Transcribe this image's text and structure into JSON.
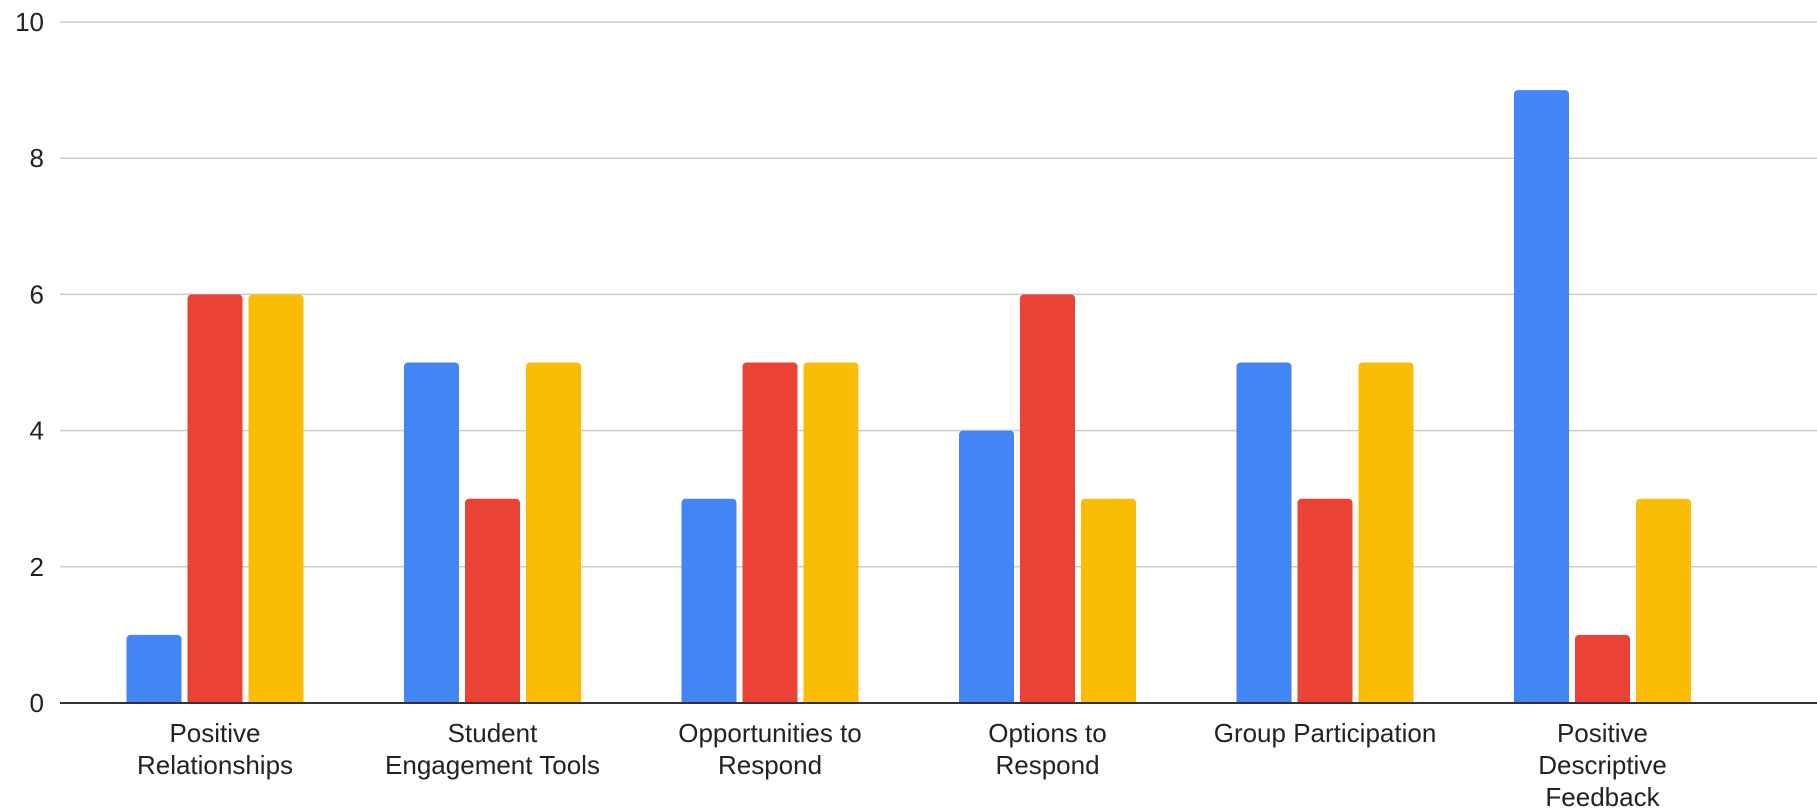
{
  "chart_data": {
    "type": "bar",
    "title": "",
    "xlabel": "",
    "ylabel": "",
    "ylim": [
      0,
      10
    ],
    "yticks": [
      0,
      2,
      4,
      6,
      8,
      10
    ],
    "grid": true,
    "legend": "none",
    "categories": [
      [
        "Positive",
        "Relationships"
      ],
      [
        "Student",
        "Engagement Tools"
      ],
      [
        "Opportunities to",
        "Respond"
      ],
      [
        "Options to",
        "Respond"
      ],
      [
        "Group Participation"
      ],
      [
        "Positive",
        "Descriptive",
        "Feedback"
      ]
    ],
    "series": [
      {
        "color": "#4285F4",
        "values": [
          1,
          5,
          3,
          4,
          5,
          9
        ]
      },
      {
        "color": "#EA4335",
        "values": [
          6,
          3,
          5,
          6,
          3,
          1
        ]
      },
      {
        "color": "#FBBC04",
        "values": [
          6,
          5,
          5,
          3,
          5,
          3
        ]
      }
    ]
  }
}
